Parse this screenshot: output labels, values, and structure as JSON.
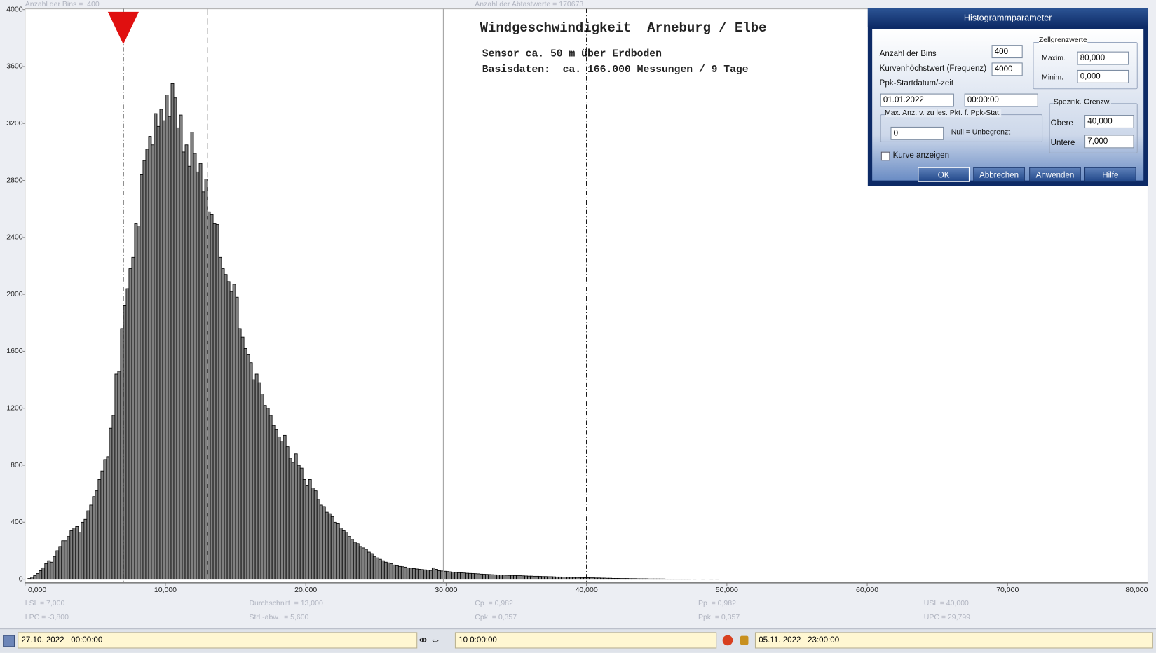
{
  "chart_data": {
    "type": "histogram",
    "title": "Windgeschwindigkeit  Arneburg / Elbe",
    "subtitle": [
      "Sensor ca. 50 m über Erdboden",
      "Basisdaten:  ca. 166.000 Messungen / 9 Tage"
    ],
    "header_labels": [
      "Anzahl der Bins =  400",
      "Anzahl der Abtastwerte = 170673"
    ],
    "bins": [
      0,
      0.2,
      0.4,
      0.6,
      0.8,
      1,
      1.2,
      1.4,
      1.6,
      1.8,
      2,
      2.2,
      2.4,
      2.6,
      2.8,
      3,
      3.2,
      3.4,
      3.6,
      3.8,
      4,
      4.2,
      4.4,
      4.6,
      4.8,
      5,
      5.2,
      5.4,
      5.6,
      5.8,
      6,
      6.2,
      6.4,
      6.6,
      6.8,
      7,
      7.2,
      7.4,
      7.6,
      7.8,
      8,
      8.2,
      8.4,
      8.6,
      8.8,
      9,
      9.2,
      9.4,
      9.6,
      9.8,
      10,
      10.2,
      10.4,
      10.6,
      10.8,
      11,
      11.2,
      11.4,
      11.6,
      11.8,
      12,
      12.2,
      12.4,
      12.6,
      12.8,
      13,
      13.2,
      13.4,
      13.6,
      13.8,
      14,
      14.2,
      14.4,
      14.6,
      14.8,
      15,
      15.2,
      15.4,
      15.6,
      15.8,
      16,
      16.2,
      16.4,
      16.6,
      16.8,
      17,
      17.2,
      17.4,
      17.6,
      17.8,
      18,
      18.2,
      18.4,
      18.6,
      18.8,
      19,
      19.2,
      19.4,
      19.6,
      19.8,
      20,
      20.2,
      20.4,
      20.6,
      20.8,
      21,
      21.2,
      21.4,
      21.6,
      21.8,
      22,
      22.2,
      22.4,
      22.6,
      22.8,
      23,
      23.2,
      23.4,
      23.6,
      23.8,
      24,
      24.2,
      24.4,
      24.6,
      24.8,
      25,
      25.2,
      25.4,
      25.6,
      25.8,
      26,
      26.2,
      26.4,
      26.6,
      26.8,
      27,
      27.2,
      27.4,
      27.6,
      27.8,
      28,
      28.2,
      28.4,
      28.6,
      28.8,
      29,
      29.2,
      29.4,
      29.6,
      29.8,
      30,
      30.2,
      30.4,
      30.6,
      30.8,
      31,
      31.2,
      31.4,
      31.6,
      31.8,
      32,
      32.2,
      32.4,
      32.6,
      32.8,
      33,
      33.2,
      33.4,
      33.6,
      33.8,
      34,
      34.2,
      34.4,
      34.6,
      34.8,
      35,
      35.2,
      35.4,
      35.6,
      35.8,
      36,
      36.2,
      36.4,
      36.6,
      36.8,
      37,
      37.2,
      37.4,
      37.6,
      37.8,
      38,
      38.2,
      38.4,
      38.6,
      38.8,
      39,
      39.2,
      39.4,
      39.6,
      39.8,
      40,
      40.2,
      40.4,
      40.6,
      40.8,
      41,
      41.2,
      41.4,
      41.6,
      41.8,
      42,
      42.2,
      42.4,
      42.6,
      42.8,
      43,
      43.2,
      43.4,
      43.6,
      43.8,
      44,
      44.2,
      44.4,
      44.6,
      44.8,
      45,
      45.2,
      45.4,
      45.6,
      45.8,
      46,
      46.2,
      46.4,
      46.6,
      46.8,
      47,
      47.2,
      47.4,
      47.6,
      47.8,
      48,
      48.2,
      48.4,
      48.6,
      48.8,
      49,
      49.2,
      49.4,
      49.6,
      49.8,
      50
    ],
    "values": [
      0,
      5,
      15,
      25,
      40,
      60,
      80,
      110,
      130,
      120,
      160,
      200,
      230,
      270,
      270,
      300,
      340,
      360,
      370,
      330,
      400,
      420,
      480,
      520,
      580,
      620,
      700,
      760,
      840,
      860,
      1060,
      1150,
      1440,
      1460,
      1760,
      1920,
      2040,
      2180,
      2260,
      2500,
      2480,
      2840,
      2940,
      3020,
      3110,
      3050,
      3270,
      3180,
      3300,
      3220,
      3400,
      3250,
      3480,
      3380,
      3170,
      3260,
      3000,
      3050,
      2900,
      3140,
      2990,
      2860,
      2920,
      2720,
      2810,
      2580,
      2560,
      2500,
      2490,
      2260,
      2180,
      2140,
      2090,
      2020,
      2070,
      1980,
      1760,
      1700,
      1620,
      1580,
      1520,
      1400,
      1440,
      1380,
      1300,
      1220,
      1200,
      1150,
      1080,
      1050,
      1000,
      970,
      1010,
      930,
      850,
      820,
      880,
      800,
      780,
      700,
      660,
      700,
      640,
      620,
      560,
      520,
      510,
      470,
      460,
      440,
      400,
      390,
      360,
      340,
      330,
      300,
      280,
      260,
      250,
      230,
      220,
      210,
      190,
      180,
      160,
      150,
      140,
      130,
      120,
      115,
      110,
      100,
      95,
      90,
      88,
      85,
      80,
      78,
      75,
      72,
      70,
      68,
      66,
      64,
      62,
      80,
      70,
      60,
      58,
      56,
      54,
      52,
      50,
      48,
      46,
      45,
      44,
      42,
      41,
      40,
      39,
      38,
      36,
      35,
      34,
      33,
      32,
      31,
      30,
      30,
      29,
      28,
      27,
      27,
      26,
      25,
      25,
      24,
      23,
      22,
      22,
      21,
      21,
      20,
      19,
      19,
      18,
      18,
      17,
      16,
      16,
      15,
      15,
      14,
      14,
      13,
      13,
      12,
      12,
      11,
      11,
      10,
      10,
      9,
      9,
      8,
      8,
      7,
      7,
      6,
      6,
      6,
      5,
      5,
      5,
      4,
      4,
      4,
      3,
      3,
      3,
      3,
      2,
      2,
      2,
      2,
      2,
      2,
      1,
      1,
      1,
      1,
      1,
      1,
      1,
      1,
      1,
      0,
      1,
      0,
      0,
      1,
      0,
      0,
      1,
      0,
      1,
      0,
      0,
      0
    ],
    "color": "#808080",
    "xlim": [
      0,
      80
    ],
    "ylim": [
      0,
      4000
    ],
    "xticks": [
      {
        "value": 0,
        "label": "0,000"
      },
      {
        "value": 10,
        "label": "10,000"
      },
      {
        "value": 20,
        "label": "20,000"
      },
      {
        "value": 30,
        "label": "30,000"
      },
      {
        "value": 40,
        "label": "40,000"
      },
      {
        "value": 50,
        "label": "50,000"
      },
      {
        "value": 60,
        "label": "60,000"
      },
      {
        "value": 70,
        "label": "70,000"
      },
      {
        "value": 80,
        "label": "80,000"
      }
    ],
    "yticks": [
      0,
      400,
      800,
      1200,
      1600,
      2000,
      2400,
      2800,
      3200,
      3600,
      4000
    ],
    "reference_lines": [
      {
        "value": 7,
        "style": "dash-dot",
        "color": "#000000"
      },
      {
        "value": 13,
        "style": "dashed",
        "color": "#a0a0a0"
      },
      {
        "value": 29.799,
        "style": "solid",
        "color": "#a0a0a0"
      },
      {
        "value": 40,
        "style": "dash-dot",
        "color": "#000000"
      }
    ],
    "marker": {
      "value": 7,
      "color": "#e01010"
    },
    "stats": [
      "LSL = 7,000",
      "LPC = -3,800",
      "Durchschnitt  = 13,000",
      "Std.-abw.  = 5,600",
      "Cp  = 0,982",
      "Cpk  = 0,357",
      "Pp  = 0,982",
      "Ppk  = 0,357",
      "USL = 40,000",
      "UPC = 29,799"
    ]
  },
  "dialog": {
    "title": "Histogrammparameter",
    "bins_label": "Anzahl der Bins",
    "bins_value": "400",
    "peak_label": "Kurvenhöchstwert (Frequenz)",
    "peak_value": "4000",
    "start_label": "Ppk-Startdatum/-zeit",
    "start_date": "01.01.2022",
    "start_time": "00:00:00",
    "max_group": "Max. Anz. v. zu les. Pkt. f. Ppk-Stat.",
    "max_value": "0",
    "max_note": "Null = Unbegrenzt",
    "curve_label": "Kurve anzeigen",
    "cell_group": "Zellgrenzwerte",
    "max_label": "Maxim.",
    "max_cell": "80,000",
    "min_label": "Minim.",
    "min_cell": "0,000",
    "spec_group": "Spezifik.-Grenzw.",
    "upper_label": "Obere",
    "upper_value": "40,000",
    "lower_label": "Untere",
    "lower_value": "7,000",
    "buttons": [
      "OK",
      "Abbrechen",
      "Anwenden",
      "Hilfe"
    ]
  },
  "footer": {
    "start": "27.10. 2022   00:00:00",
    "span": "10 0:00:00",
    "end": "05.11. 2022   23:00:00"
  }
}
